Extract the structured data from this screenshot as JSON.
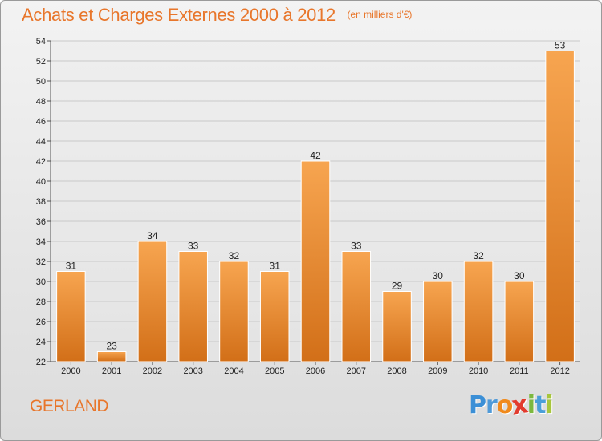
{
  "title": "Achats et Charges Externes 2000 à 2012",
  "unit": "(en milliers d'€)",
  "location": "GERLAND",
  "brand": {
    "letters": [
      "P",
      "r",
      "o",
      "x",
      "i",
      "t",
      "i"
    ],
    "colors": [
      "#3b8fd6",
      "#4f9ad8",
      "#f08a1c",
      "#e23b2e",
      "#7cb83e",
      "#4a9fd8",
      "#a7c63c"
    ]
  },
  "colors": {
    "bar_light": "#f7a550",
    "bar_dark": "#d26f18",
    "title": "#e8762b"
  },
  "chart_data": {
    "type": "bar",
    "categories": [
      "2000",
      "2001",
      "2002",
      "2003",
      "2004",
      "2005",
      "2006",
      "2007",
      "2008",
      "2009",
      "2010",
      "2011",
      "2012"
    ],
    "values": [
      31,
      23,
      34,
      33,
      32,
      31,
      42,
      33,
      29,
      30,
      32,
      30,
      53
    ],
    "ylim": [
      22,
      54
    ],
    "yticks": [
      22,
      24,
      26,
      28,
      30,
      32,
      34,
      36,
      38,
      40,
      42,
      44,
      46,
      48,
      50,
      52,
      54
    ],
    "grid": "horizontal",
    "data_labels": true
  }
}
